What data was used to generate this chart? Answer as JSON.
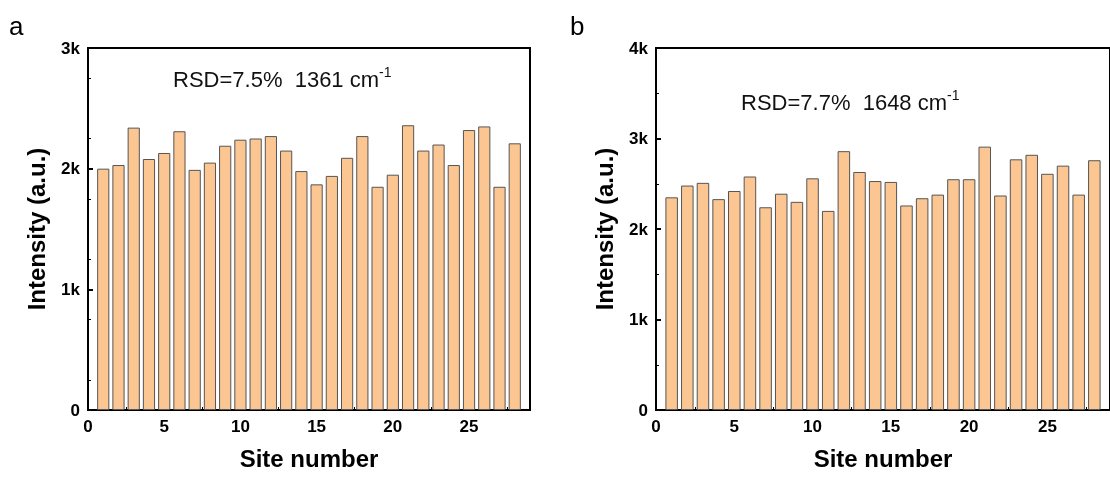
{
  "chart_data": [
    {
      "type": "bar",
      "title": "a",
      "xlabel": "Site number",
      "ylabel": "Intensity (a.u.)",
      "annotations": [
        "RSD=7.5%  1361 cm$^{-1}$"
      ],
      "x": [
        1,
        2,
        3,
        4,
        5,
        6,
        7,
        8,
        9,
        10,
        11,
        12,
        13,
        14,
        15,
        16,
        17,
        18,
        19,
        20,
        21,
        22,
        23,
        24,
        25,
        26,
        27,
        28
      ],
      "series": [
        {
          "color": "#fcc693",
          "values": [
            2000,
            2030,
            2340,
            2080,
            2130,
            2310,
            1990,
            2050,
            2190,
            2240,
            2250,
            2270,
            2150,
            1980,
            1870,
            1940,
            2090,
            2270,
            1850,
            1950,
            2360,
            2150,
            2200,
            2030,
            2320,
            2350,
            1850,
            2210
          ]
        }
      ],
      "xlim": [
        0,
        29
      ],
      "xticks": [
        0,
        5,
        10,
        15,
        20,
        25
      ],
      "ylim": [
        0,
        3000
      ],
      "yticks": [
        0,
        {
          "value": 1000,
          "label": "1k"
        },
        {
          "value": 2000,
          "label": "2k"
        },
        {
          "value": 3000,
          "label": "3k"
        }
      ],
      "grid": false
    },
    {
      "type": "bar",
      "title": "b",
      "xlabel": "Site number",
      "ylabel": "Intensity (a.u.)",
      "annotations": [
        "RSD=7.7%  1648 cm$^{-1}$"
      ],
      "x": [
        1,
        2,
        3,
        4,
        5,
        6,
        7,
        8,
        9,
        10,
        11,
        12,
        13,
        14,
        15,
        16,
        17,
        18,
        19,
        20,
        21,
        22,
        23,
        24,
        25,
        26,
        27,
        28
      ],
      "series": [
        {
          "color": "#fcc693",
          "values": [
            2350,
            2480,
            2510,
            2330,
            2420,
            2580,
            2240,
            2390,
            2300,
            2560,
            2200,
            2860,
            2630,
            2530,
            2520,
            2260,
            2340,
            2380,
            2550,
            2550,
            2910,
            2370,
            2770,
            2820,
            2610,
            2700,
            2380,
            2760
          ]
        }
      ],
      "xlim": [
        0,
        29
      ],
      "xticks": [
        0,
        5,
        10,
        15,
        20,
        25
      ],
      "ylim": [
        0,
        4000
      ],
      "yticks": [
        0,
        {
          "value": 1000,
          "label": "1k"
        },
        {
          "value": 2000,
          "label": "2k"
        },
        {
          "value": 3000,
          "label": "3k"
        },
        {
          "value": 4000,
          "label": "4k"
        }
      ],
      "grid": false
    }
  ]
}
